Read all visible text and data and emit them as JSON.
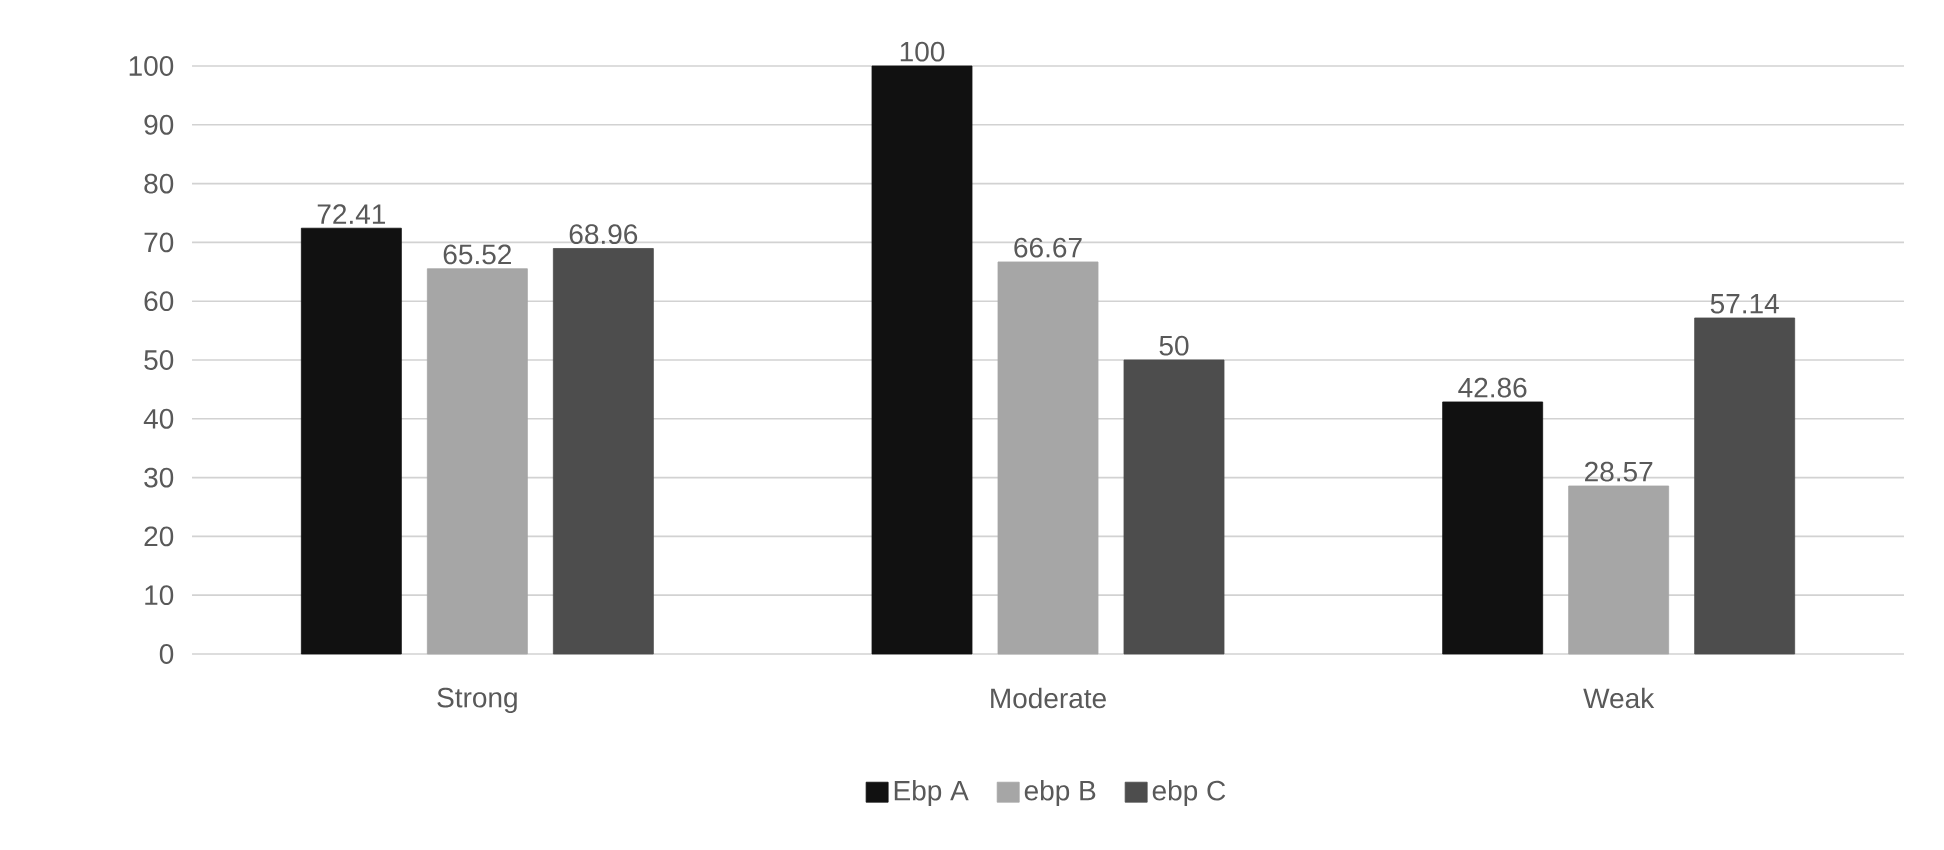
{
  "chart_data": {
    "type": "bar",
    "categories": [
      "Strong",
      "Moderate",
      "Weak"
    ],
    "series": [
      {
        "name": "Ebp A",
        "color": "#111111",
        "values": [
          72.41,
          100,
          42.86
        ]
      },
      {
        "name": "ebp B",
        "color": "#a6a6a6",
        "values": [
          65.52,
          66.67,
          28.57
        ]
      },
      {
        "name": "ebp C",
        "color": "#4d4d4d",
        "values": [
          68.96,
          50,
          57.14
        ]
      }
    ],
    "ylim": [
      0,
      100
    ],
    "yticks": [
      0,
      10,
      20,
      30,
      40,
      50,
      60,
      70,
      80,
      90,
      100
    ],
    "grid": "y",
    "legend": "bottom",
    "data_labels": true
  }
}
